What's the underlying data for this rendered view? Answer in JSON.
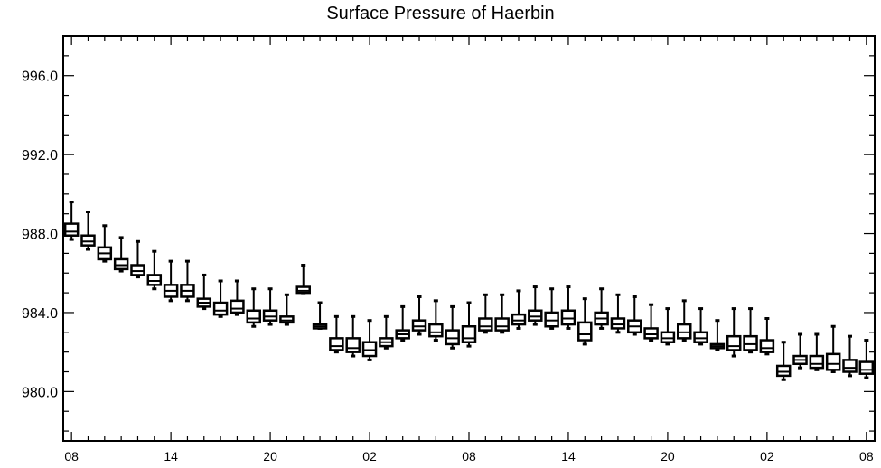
{
  "chart_data": {
    "type": "boxplot",
    "title": "Surface Pressure of Haerbin",
    "xlabel": "",
    "ylabel": "",
    "ylim": [
      977.5,
      998
    ],
    "y_ticks": [
      "980.0",
      "984.0",
      "988.0",
      "992.0",
      "996.0"
    ],
    "y_tick_values": [
      980,
      984,
      988,
      992,
      996
    ],
    "x_ticks": [
      "08",
      "14",
      "20",
      "02",
      "08",
      "14",
      "20",
      "02",
      "08"
    ],
    "x_tick_steps": [
      0,
      6,
      12,
      18,
      24,
      30,
      36,
      42,
      48
    ],
    "x_range": [
      -0.5,
      48.5
    ],
    "grid": false,
    "boxes": [
      {
        "step": 0,
        "min": 987.7,
        "q1": 987.9,
        "median": 988.1,
        "q3": 988.5,
        "max": 989.6
      },
      {
        "step": 1,
        "min": 987.2,
        "q1": 987.4,
        "median": 987.6,
        "q3": 987.9,
        "max": 989.1
      },
      {
        "step": 2,
        "min": 986.6,
        "q1": 986.7,
        "median": 987.0,
        "q3": 987.3,
        "max": 988.4
      },
      {
        "step": 3,
        "min": 986.1,
        "q1": 986.2,
        "median": 986.4,
        "q3": 986.7,
        "max": 987.8
      },
      {
        "step": 4,
        "min": 985.8,
        "q1": 985.9,
        "median": 986.1,
        "q3": 986.4,
        "max": 987.6
      },
      {
        "step": 5,
        "min": 985.2,
        "q1": 985.4,
        "median": 985.6,
        "q3": 985.9,
        "max": 987.1
      },
      {
        "step": 6,
        "min": 984.6,
        "q1": 984.8,
        "median": 985.1,
        "q3": 985.4,
        "max": 986.6
      },
      {
        "step": 7,
        "min": 984.6,
        "q1": 984.8,
        "median": 985.1,
        "q3": 985.4,
        "max": 986.6
      },
      {
        "step": 8,
        "min": 984.2,
        "q1": 984.3,
        "median": 984.5,
        "q3": 984.7,
        "max": 985.9
      },
      {
        "step": 9,
        "min": 983.8,
        "q1": 983.9,
        "median": 984.1,
        "q3": 984.5,
        "max": 985.6
      },
      {
        "step": 10,
        "min": 983.9,
        "q1": 984.0,
        "median": 984.2,
        "q3": 984.6,
        "max": 985.6
      },
      {
        "step": 11,
        "min": 983.3,
        "q1": 983.5,
        "median": 983.7,
        "q3": 984.1,
        "max": 985.2
      },
      {
        "step": 12,
        "min": 983.4,
        "q1": 983.6,
        "median": 983.8,
        "q3": 984.1,
        "max": 985.2
      },
      {
        "step": 13,
        "min": 983.4,
        "q1": 983.5,
        "median": 983.6,
        "q3": 983.8,
        "max": 984.9
      },
      {
        "step": 14,
        "min": 985.0,
        "q1": 985.0,
        "median": 985.1,
        "q3": 985.3,
        "max": 986.4
      },
      {
        "step": 15,
        "min": 983.2,
        "q1": 983.2,
        "median": 983.3,
        "q3": 983.4,
        "max": 984.5
      },
      {
        "step": 16,
        "min": 982.0,
        "q1": 982.1,
        "median": 982.3,
        "q3": 982.7,
        "max": 983.8
      },
      {
        "step": 17,
        "min": 981.8,
        "q1": 982.0,
        "median": 982.2,
        "q3": 982.7,
        "max": 983.8
      },
      {
        "step": 18,
        "min": 981.6,
        "q1": 981.8,
        "median": 982.1,
        "q3": 982.5,
        "max": 983.6
      },
      {
        "step": 19,
        "min": 982.2,
        "q1": 982.3,
        "median": 982.5,
        "q3": 982.7,
        "max": 983.8
      },
      {
        "step": 20,
        "min": 982.6,
        "q1": 982.7,
        "median": 982.9,
        "q3": 983.1,
        "max": 984.3
      },
      {
        "step": 21,
        "min": 982.9,
        "q1": 983.1,
        "median": 983.3,
        "q3": 983.6,
        "max": 984.8
      },
      {
        "step": 22,
        "min": 982.6,
        "q1": 982.8,
        "median": 983.0,
        "q3": 983.4,
        "max": 984.6
      },
      {
        "step": 23,
        "min": 982.2,
        "q1": 982.4,
        "median": 982.7,
        "q3": 983.1,
        "max": 984.3
      },
      {
        "step": 24,
        "min": 982.3,
        "q1": 982.5,
        "median": 982.7,
        "q3": 983.3,
        "max": 984.5
      },
      {
        "step": 25,
        "min": 983.0,
        "q1": 983.1,
        "median": 983.3,
        "q3": 983.7,
        "max": 984.9
      },
      {
        "step": 26,
        "min": 983.0,
        "q1": 983.1,
        "median": 983.3,
        "q3": 983.7,
        "max": 984.9
      },
      {
        "step": 27,
        "min": 983.2,
        "q1": 983.4,
        "median": 983.6,
        "q3": 983.9,
        "max": 985.1
      },
      {
        "step": 28,
        "min": 983.4,
        "q1": 983.6,
        "median": 983.8,
        "q3": 984.1,
        "max": 985.3
      },
      {
        "step": 29,
        "min": 983.2,
        "q1": 983.3,
        "median": 983.6,
        "q3": 984.0,
        "max": 985.2
      },
      {
        "step": 30,
        "min": 983.2,
        "q1": 983.4,
        "median": 983.7,
        "q3": 984.1,
        "max": 985.3
      },
      {
        "step": 31,
        "min": 982.4,
        "q1": 982.6,
        "median": 982.9,
        "q3": 983.5,
        "max": 984.7
      },
      {
        "step": 32,
        "min": 983.2,
        "q1": 983.4,
        "median": 983.7,
        "q3": 984.0,
        "max": 985.2
      },
      {
        "step": 33,
        "min": 983.0,
        "q1": 983.2,
        "median": 983.4,
        "q3": 983.7,
        "max": 984.9
      },
      {
        "step": 34,
        "min": 982.9,
        "q1": 983.0,
        "median": 983.3,
        "q3": 983.6,
        "max": 984.8
      },
      {
        "step": 35,
        "min": 982.6,
        "q1": 982.7,
        "median": 982.9,
        "q3": 983.2,
        "max": 984.4
      },
      {
        "step": 36,
        "min": 982.4,
        "q1": 982.5,
        "median": 982.7,
        "q3": 983.0,
        "max": 984.2
      },
      {
        "step": 37,
        "min": 982.6,
        "q1": 982.7,
        "median": 983.0,
        "q3": 983.4,
        "max": 984.6
      },
      {
        "step": 38,
        "min": 982.4,
        "q1": 982.5,
        "median": 982.7,
        "q3": 983.0,
        "max": 984.2
      },
      {
        "step": 39,
        "min": 982.1,
        "q1": 982.2,
        "median": 982.3,
        "q3": 982.4,
        "max": 983.6
      },
      {
        "step": 40,
        "min": 981.8,
        "q1": 982.1,
        "median": 982.3,
        "q3": 982.8,
        "max": 984.2
      },
      {
        "step": 41,
        "min": 982.0,
        "q1": 982.1,
        "median": 982.4,
        "q3": 982.8,
        "max": 984.2
      },
      {
        "step": 42,
        "min": 981.9,
        "q1": 982.0,
        "median": 982.2,
        "q3": 982.6,
        "max": 983.7
      },
      {
        "step": 43,
        "min": 980.6,
        "q1": 980.8,
        "median": 981.0,
        "q3": 981.3,
        "max": 982.5
      },
      {
        "step": 44,
        "min": 981.2,
        "q1": 981.4,
        "median": 981.6,
        "q3": 981.8,
        "max": 982.9
      },
      {
        "step": 45,
        "min": 981.1,
        "q1": 981.2,
        "median": 981.4,
        "q3": 981.8,
        "max": 982.9
      },
      {
        "step": 46,
        "min": 981.0,
        "q1": 981.1,
        "median": 981.4,
        "q3": 981.9,
        "max": 983.3
      },
      {
        "step": 47,
        "min": 980.8,
        "q1": 981.0,
        "median": 981.2,
        "q3": 981.6,
        "max": 982.8
      },
      {
        "step": 48,
        "min": 980.7,
        "q1": 980.9,
        "median": 981.1,
        "q3": 981.5,
        "max": 982.6
      }
    ]
  }
}
